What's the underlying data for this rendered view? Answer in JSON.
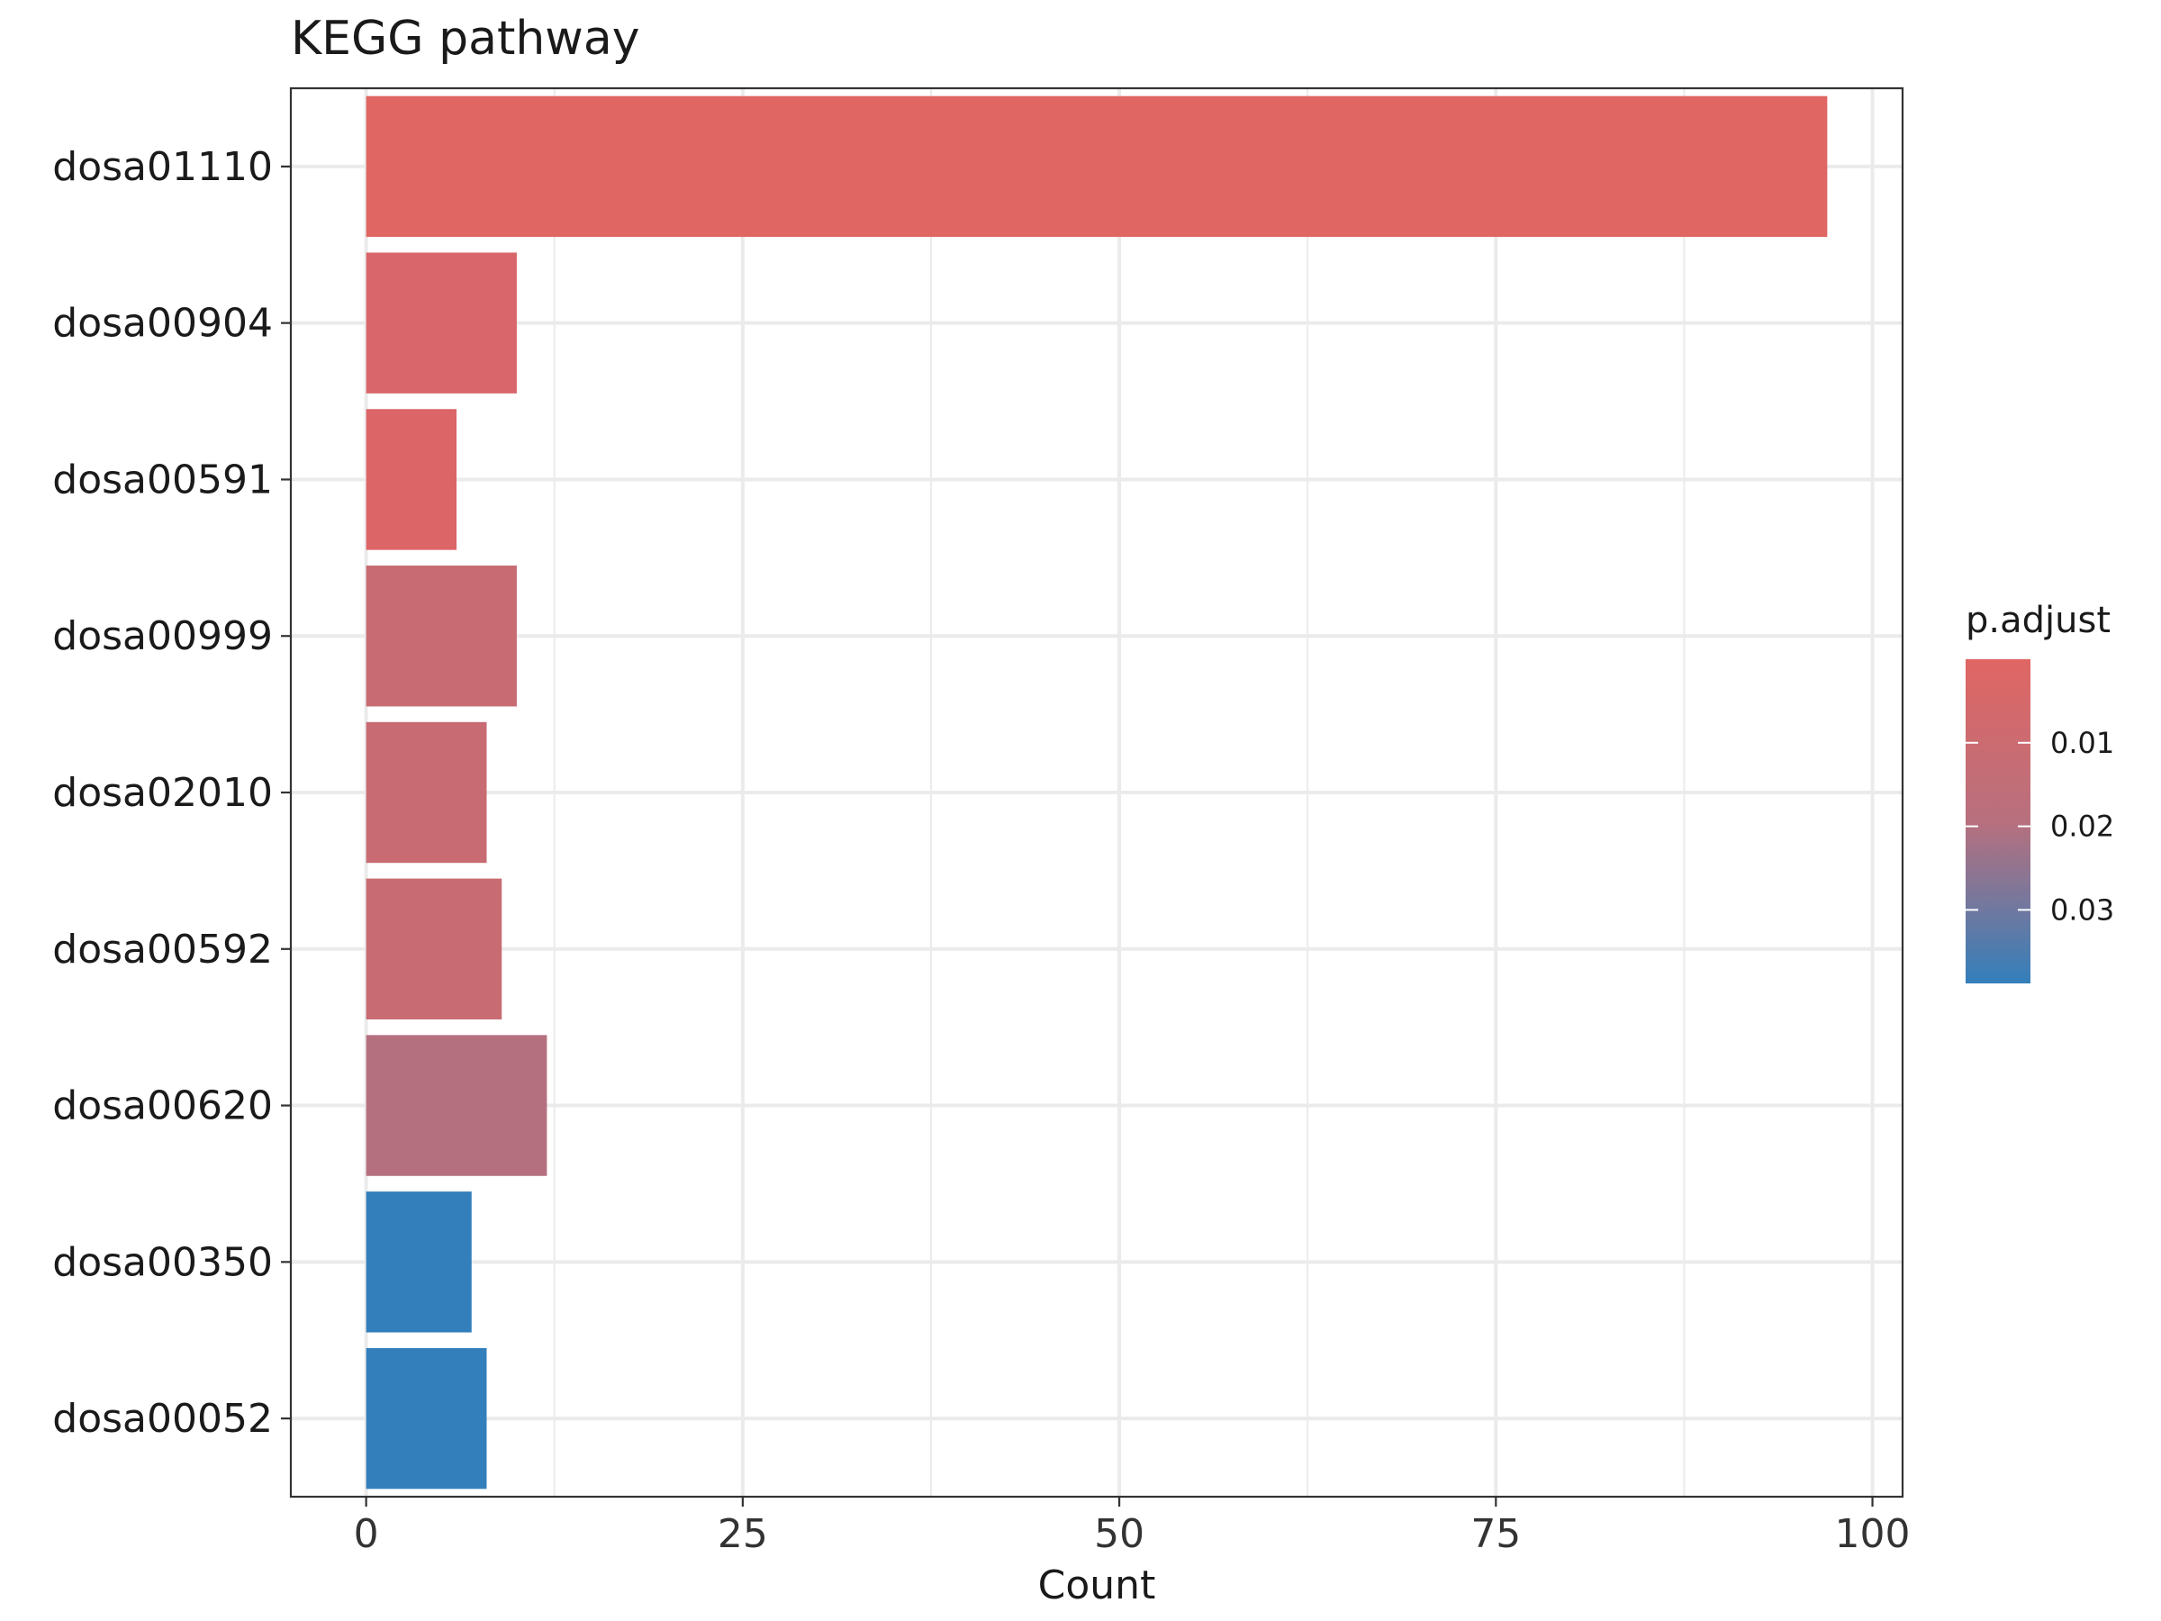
{
  "chart_data": {
    "type": "bar",
    "orientation": "horizontal",
    "title": "KEGG pathway",
    "xlabel": "Count",
    "ylabel": "",
    "xlim": [
      -5,
      102
    ],
    "x_ticks": [
      0,
      25,
      50,
      75,
      100
    ],
    "grid": true,
    "categories": [
      "dosa01110",
      "dosa00904",
      "dosa00591",
      "dosa00999",
      "dosa02010",
      "dosa00592",
      "dosa00620",
      "dosa00350",
      "dosa00052"
    ],
    "values": [
      97,
      10,
      6,
      10,
      8,
      9,
      12,
      7,
      8
    ],
    "p_adjust": [
      0.0001,
      0.002,
      0.001,
      0.008,
      0.008,
      0.008,
      0.013,
      0.038,
      0.038
    ],
    "bar_colors": [
      "#e06663",
      "#d9666a",
      "#dc6568",
      "#c86b72",
      "#c86b72",
      "#c86b72",
      "#b57080",
      "#337fbb",
      "#337fbb"
    ],
    "legend": {
      "title": "p.adjust",
      "placement": "right",
      "min": 0,
      "max": 0.0388,
      "ticks": [
        "0.01",
        "0.02",
        "0.03"
      ],
      "tick_values": [
        0.01,
        0.02,
        0.03
      ],
      "color_low": "#e06663",
      "color_high": "#337fbb"
    }
  }
}
